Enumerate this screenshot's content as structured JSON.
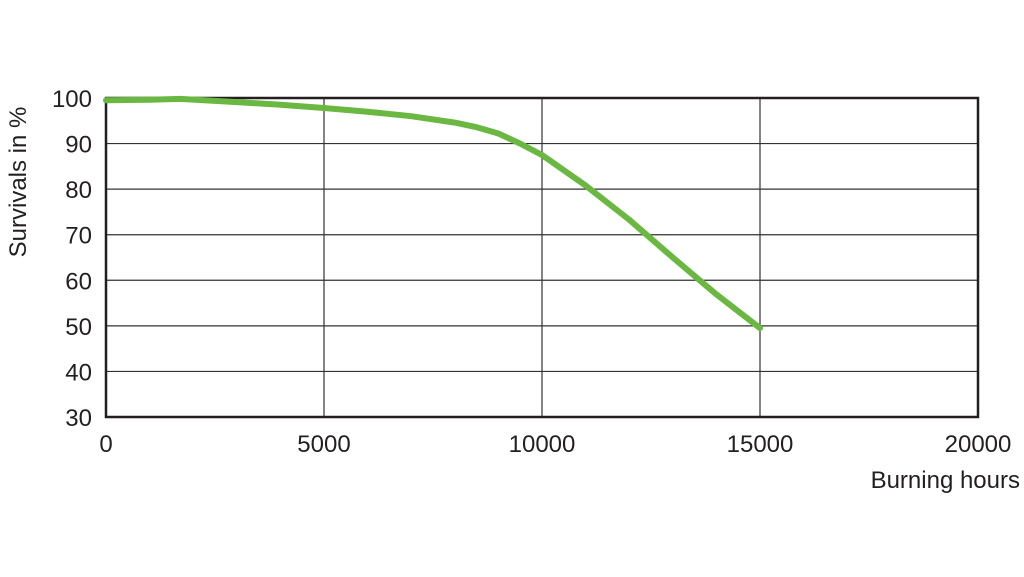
{
  "chart_data": {
    "type": "line",
    "title": "",
    "xlabel": "Burning hours",
    "ylabel": "Survivals in %",
    "xlim": [
      0,
      20000
    ],
    "ylim": [
      30,
      100
    ],
    "xticks": [
      0,
      5000,
      10000,
      15000,
      20000
    ],
    "yticks": [
      30,
      40,
      50,
      60,
      70,
      80,
      90,
      100
    ],
    "grid": true,
    "line_color": "#6ab842",
    "series": [
      {
        "x": [
          0,
          1000,
          1700,
          3000,
          4000,
          5000,
          6000,
          7000,
          8000,
          8500,
          9000,
          9500,
          10000,
          11000,
          12000,
          13000,
          14000,
          15000
        ],
        "y": [
          99.5,
          99.6,
          99.8,
          99.1,
          98.5,
          97.8,
          97.0,
          96.0,
          94.6,
          93.6,
          92.2,
          90.0,
          87.5,
          80.8,
          73.3,
          65.0,
          56.9,
          49.5
        ]
      }
    ]
  }
}
